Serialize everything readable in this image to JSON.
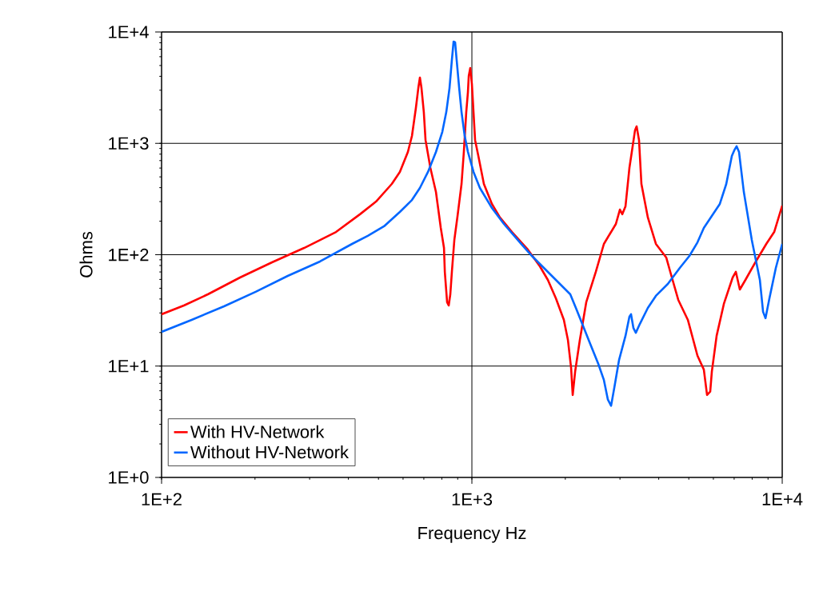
{
  "chart_data": {
    "type": "line",
    "xlabel": "Frequency Hz",
    "ylabel": "Ohms",
    "log": "xy",
    "grid": true,
    "legend": "bottom left",
    "line_style": "solid",
    "marker": "none",
    "xlim": [
      100,
      10000
    ],
    "ylim": [
      1,
      10000
    ],
    "xticks": [
      {
        "value": 100,
        "label": "1E+2"
      },
      {
        "value": 1000,
        "label": "1E+3"
      },
      {
        "value": 10000,
        "label": "1E+4"
      }
    ],
    "yticks": [
      {
        "value": 1,
        "label": "1E+0"
      },
      {
        "value": 10,
        "label": "1E+1"
      },
      {
        "value": 100,
        "label": "1E+2"
      },
      {
        "value": 1000,
        "label": "1E+3"
      },
      {
        "value": 10000,
        "label": "1E+4"
      }
    ],
    "series": [
      {
        "name": "With HV-Network",
        "color": "#ff0000",
        "x": [
          100,
          118,
          141,
          179,
          227,
          288,
          365,
          436,
          491,
          552,
          586,
          622,
          641,
          660,
          672,
          680,
          688,
          700,
          709,
          735,
          766,
          794,
          813,
          818,
          832,
          842,
          852,
          862,
          878,
          899,
          926,
          942,
          959,
          971,
          977,
          988,
          1000,
          1012,
          1024,
          1049,
          1093,
          1160,
          1231,
          1346,
          1515,
          1656,
          1757,
          1865,
          1979,
          2039,
          2088,
          2113,
          2151,
          2228,
          2336,
          2508,
          2663,
          2911,
          2999,
          3053,
          3126,
          3218,
          3276,
          3355,
          3395,
          3456,
          3518,
          3690,
          3917,
          4229,
          4358,
          4624,
          4965,
          5332,
          5590,
          5725,
          5861,
          5932,
          6147,
          6486,
          6924,
          7089,
          7303,
          7612,
          8222,
          8886,
          9423,
          10000
        ],
        "values": [
          29.2,
          35.0,
          44.1,
          62.4,
          85.5,
          115,
          160,
          231,
          300,
          432,
          554,
          837,
          1165,
          2080,
          3140,
          3900,
          3140,
          1910,
          1070,
          601,
          366,
          174,
          115,
          70.1,
          37.4,
          35.0,
          44.1,
          70.1,
          136,
          223,
          432,
          837,
          1910,
          2890,
          4030,
          4750,
          3410,
          1910,
          1070,
          771,
          432,
          286,
          216,
          160,
          111,
          78.7,
          59.4,
          40.6,
          26.0,
          17.2,
          9.6,
          5.5,
          8.9,
          17.2,
          37.4,
          70.1,
          125,
          189,
          254,
          231,
          272,
          601,
          837,
          1310,
          1420,
          1070,
          432,
          216,
          125,
          94.4,
          70.1,
          39.3,
          26.0,
          12.4,
          9.3,
          5.5,
          5.9,
          8.9,
          18.7,
          36.2,
          62.4,
          70.1,
          48.7,
          59.4,
          86.9,
          125,
          160,
          276
        ]
      },
      {
        "name": "Without HV-Network",
        "color": "#0066ff",
        "x": [
          100,
          125,
          159,
          201,
          255,
          324,
          411,
          462,
          521,
          586,
          641,
          680,
          722,
          766,
          803,
          827,
          847,
          862,
          873,
          883,
          893,
          910,
          926,
          948,
          971,
          1012,
          1061,
          1160,
          1268,
          1428,
          1561,
          1706,
          1921,
          2075,
          2163,
          2295,
          2406,
          2553,
          2663,
          2743,
          2809,
          2877,
          2981,
          3126,
          3218,
          3257,
          3315,
          3375,
          3477,
          3690,
          3917,
          4280,
          4677,
          5023,
          5332,
          5590,
          5932,
          6295,
          6603,
          6882,
          7007,
          7131,
          7259,
          7522,
          7980,
          8472,
          8676,
          8833,
          9095,
          9537,
          10000
        ],
        "values": [
          20.3,
          26.0,
          34.4,
          46.4,
          64.5,
          86.9,
          125,
          148,
          180,
          242,
          310,
          398,
          554,
          837,
          1270,
          1910,
          3140,
          5610,
          8200,
          8070,
          5610,
          3140,
          1910,
          1165,
          837,
          554,
          398,
          263,
          189,
          129,
          97.5,
          76.1,
          54.7,
          44.1,
          33.3,
          22.0,
          15.8,
          10.5,
          7.5,
          5.0,
          4.4,
          6.4,
          11.4,
          18.7,
          27.8,
          29.2,
          22.0,
          19.9,
          23.9,
          33.3,
          42.7,
          54.7,
          76.1,
          97.5,
          129,
          174,
          223,
          286,
          432,
          771,
          866,
          940,
          837,
          366,
          136,
          59.4,
          30.7,
          26.9,
          40.6,
          76.1,
          125
        ]
      }
    ]
  }
}
